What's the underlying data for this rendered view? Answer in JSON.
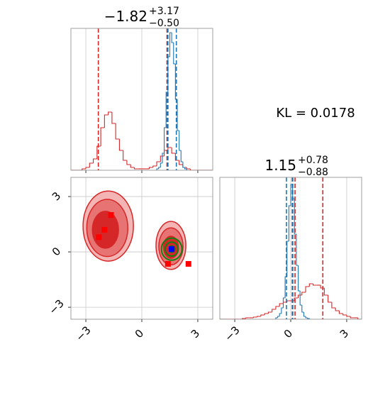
{
  "annotation": "KL = 0.0178",
  "chart_data": [
    {
      "type": "histogram",
      "title": {
        "main": "−1.82",
        "upper": "+3.17",
        "lower": "−0.50"
      },
      "xlim": [
        -3.8,
        3.8
      ],
      "ylim": [
        0,
        1
      ],
      "xticks": [
        {
          "value": -3,
          "label": "−3"
        },
        0,
        3
      ],
      "grid": true,
      "series": [
        {
          "color": "#d62728",
          "bins": [
            -3.8,
            -3.6,
            -3.4,
            -3.2,
            -3.0,
            -2.8,
            -2.6,
            -2.4,
            -2.2,
            -2.0,
            -1.8,
            -1.6,
            -1.4,
            -1.2,
            -1.0,
            -0.8,
            -0.6,
            -0.4,
            -0.2,
            0,
            0.2,
            0.4,
            0.6,
            0.8,
            1.0,
            1.2,
            1.4,
            1.6,
            1.8,
            2.0,
            2.2,
            2.4,
            2.6,
            2.8,
            3.0,
            3.2,
            3.4,
            3.6,
            3.8
          ],
          "values": [
            0,
            0,
            0,
            0.01,
            0.02,
            0.05,
            0.08,
            0.17,
            0.3,
            0.39,
            0.41,
            0.33,
            0.22,
            0.14,
            0.07,
            0.04,
            0.02,
            0.01,
            0.01,
            0.01,
            0.01,
            0.02,
            0.03,
            0.06,
            0.1,
            0.14,
            0.16,
            0.12,
            0.07,
            0.04,
            0.02,
            0.01,
            0,
            0,
            0,
            0,
            0,
            0
          ],
          "lines": [
            -2.33,
            1.35
          ]
        },
        {
          "color": "#1f77b4",
          "bins": [
            0.8,
            0.9,
            1.0,
            1.1,
            1.2,
            1.3,
            1.4,
            1.5,
            1.6,
            1.7,
            1.8,
            1.9,
            2.0,
            2.1,
            2.2,
            2.3,
            2.4
          ],
          "values": [
            0.01,
            0.02,
            0.05,
            0.12,
            0.3,
            0.55,
            0.8,
            0.97,
            0.9,
            0.75,
            0.5,
            0.28,
            0.14,
            0.06,
            0.02,
            0.01
          ],
          "lines": [
            1.4,
            1.85
          ]
        }
      ]
    },
    {
      "type": "scatter",
      "xlim": [
        -3.8,
        3.8
      ],
      "ylim": [
        -3.65,
        4.04
      ],
      "xticks": [
        {
          "value": -3,
          "label": "−3"
        },
        0,
        3
      ],
      "yticks": [
        {
          "value": -3,
          "label": "−3"
        },
        0,
        3
      ],
      "grid": true,
      "contours": [
        {
          "x": -1.8,
          "y": 1.4,
          "rx": 1.35,
          "ry": 1.9,
          "color": "#f4b4b4"
        },
        {
          "x": -1.85,
          "y": 1.3,
          "rx": 1.1,
          "ry": 1.55,
          "color": "#e87373"
        },
        {
          "x": -1.95,
          "y": 1.2,
          "rx": 0.7,
          "ry": 1.0,
          "color": "#d62728"
        },
        {
          "x": 1.56,
          "y": 0.35,
          "rx": 0.8,
          "ry": 1.3,
          "color": "#f4b4b4"
        },
        {
          "x": 1.56,
          "y": 0.3,
          "rx": 0.65,
          "ry": 1.0,
          "color": "#e87373"
        },
        {
          "x": 1.56,
          "y": 0.25,
          "rx": 0.4,
          "ry": 0.6,
          "color": "#d62728"
        }
      ],
      "rings": {
        "color": "#108010",
        "x": 1.6,
        "y": 0.15,
        "rx": [
          0.55,
          0.35,
          0.15
        ],
        "ry": [
          0.6,
          0.38,
          0.17
        ]
      },
      "series": [
        {
          "color": "#ff0000",
          "x": [
            -1.65,
            -2.0,
            -2.3,
            1.4,
            2.5
          ],
          "values": [
            2.0,
            1.2,
            0.8,
            -0.65,
            -0.65
          ]
        },
        {
          "color": "#0000ff",
          "x": [
            1.6
          ],
          "values": [
            0.15
          ]
        }
      ]
    },
    {
      "type": "histogram",
      "title": {
        "main": "1.15",
        "upper": "+0.78",
        "lower": "−0.88"
      },
      "xlim": [
        -3.8,
        3.8
      ],
      "ylim": [
        0,
        1
      ],
      "xticks": [
        {
          "value": -3,
          "label": "−3"
        },
        0,
        3
      ],
      "grid": true,
      "series": [
        {
          "color": "#d62728",
          "bins": [
            -3.8,
            -3.6,
            -3.4,
            -3.2,
            -3.0,
            -2.8,
            -2.6,
            -2.4,
            -2.2,
            -2.0,
            -1.8,
            -1.6,
            -1.4,
            -1.2,
            -1.0,
            -0.8,
            -0.6,
            -0.4,
            -0.2,
            0,
            0.2,
            0.4,
            0.6,
            0.8,
            1.0,
            1.2,
            1.4,
            1.6,
            1.8,
            2.0,
            2.2,
            2.4,
            2.6,
            2.8,
            3.0,
            3.2,
            3.4,
            3.6,
            3.8
          ],
          "values": [
            0,
            0,
            0,
            0,
            0,
            0,
            0.005,
            0.01,
            0.01,
            0.015,
            0.02,
            0.03,
            0.04,
            0.05,
            0.07,
            0.09,
            0.11,
            0.12,
            0.13,
            0.13,
            0.15,
            0.17,
            0.19,
            0.23,
            0.25,
            0.24,
            0.24,
            0.22,
            0.17,
            0.12,
            0.08,
            0.06,
            0.04,
            0.03,
            0.02,
            0.01,
            0.01,
            0
          ],
          "lines": [
            0.11,
            0.23,
            1.72
          ]
        },
        {
          "color": "#1f77b4",
          "bins": [
            -0.8,
            -0.7,
            -0.6,
            -0.5,
            -0.4,
            -0.3,
            -0.2,
            -0.1,
            0,
            0.1,
            0.2,
            0.3,
            0.4,
            0.5,
            0.6,
            0.7,
            0.8,
            0.9,
            1.0
          ],
          "values": [
            0.01,
            0.02,
            0.04,
            0.08,
            0.15,
            0.3,
            0.55,
            0.8,
            0.95,
            0.85,
            0.6,
            0.38,
            0.2,
            0.1,
            0.05,
            0.02,
            0.01,
            0.005
          ],
          "lines": [
            -0.23,
            0.08
          ]
        }
      ]
    }
  ]
}
